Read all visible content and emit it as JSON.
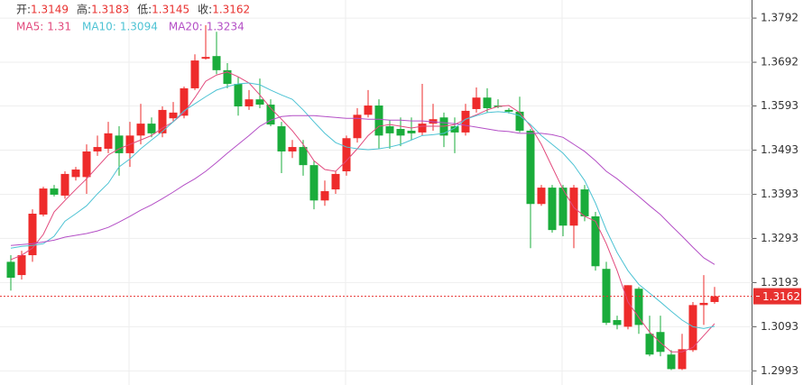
{
  "chart_data": {
    "type": "candlestick",
    "header": [
      {
        "label": "开:",
        "value": 1.3149
      },
      {
        "label": "高:",
        "value": 1.3183
      },
      {
        "label": "低:",
        "value": 1.3145
      },
      {
        "label": "收:",
        "value": 1.3162
      }
    ],
    "header_value_color": "#e8312f",
    "up_color": "#ee2b2b",
    "down_color": "#1aac3b",
    "ohlc": {
      "open": [
        1.324,
        1.321,
        1.3255,
        1.3347,
        1.3406,
        1.339,
        1.3432,
        1.3432,
        1.349,
        1.3496,
        1.3526,
        1.3486,
        1.3526,
        1.3553,
        1.3531,
        1.3565,
        1.3571,
        1.3633,
        1.37,
        1.3706,
        1.3674,
        1.3643,
        1.3592,
        1.3608,
        1.3596,
        1.3547,
        1.349,
        1.35,
        1.3459,
        1.3379,
        1.3404,
        1.3445,
        1.352,
        1.3573,
        1.3594,
        1.3547,
        1.3541,
        1.3537,
        1.3533,
        1.3553,
        1.3567,
        1.3547,
        1.3533,
        1.3586,
        1.3612,
        1.3594,
        1.3584,
        1.358,
        1.3537,
        1.3371,
        1.3408,
        1.3408,
        1.3322,
        1.3404,
        1.3343,
        1.3224,
        1.3108,
        1.3093,
        1.3179,
        1.3077,
        1.3081,
        1.303,
        1.2997,
        1.304,
        1.3142,
        1.3149
      ],
      "high": [
        1.3255,
        1.3265,
        1.3359,
        1.341,
        1.3414,
        1.3445,
        1.3455,
        1.3506,
        1.3526,
        1.3557,
        1.3547,
        1.3557,
        1.3598,
        1.3567,
        1.3592,
        1.3602,
        1.3637,
        1.371,
        1.3776,
        1.3761,
        1.369,
        1.3659,
        1.3629,
        1.3655,
        1.3608,
        1.3557,
        1.3516,
        1.3516,
        1.3469,
        1.3424,
        1.3445,
        1.3526,
        1.3588,
        1.3629,
        1.3608,
        1.3561,
        1.3567,
        1.3567,
        1.3643,
        1.3598,
        1.3578,
        1.3567,
        1.3598,
        1.3635,
        1.3633,
        1.3608,
        1.3588,
        1.3614,
        1.3541,
        1.3414,
        1.3414,
        1.3414,
        1.3414,
        1.3414,
        1.3353,
        1.324,
        1.3118,
        1.3187,
        1.3183,
        1.3118,
        1.3118,
        1.304,
        1.3077,
        1.3149,
        1.321,
        1.3183
      ],
      "low": [
        1.3175,
        1.32,
        1.324,
        1.3343,
        1.3388,
        1.3383,
        1.3424,
        1.3394,
        1.348,
        1.3486,
        1.3435,
        1.3455,
        1.3506,
        1.3522,
        1.3522,
        1.3557,
        1.3565,
        1.3629,
        1.3698,
        1.3665,
        1.3633,
        1.3571,
        1.3584,
        1.3588,
        1.3547,
        1.3441,
        1.3475,
        1.3435,
        1.3359,
        1.3367,
        1.3394,
        1.3435,
        1.351,
        1.3567,
        1.3496,
        1.3496,
        1.3502,
        1.3516,
        1.3526,
        1.3537,
        1.35,
        1.3486,
        1.3526,
        1.3578,
        1.3578,
        1.3588,
        1.3576,
        1.3533,
        1.3271,
        1.3367,
        1.3306,
        1.3298,
        1.3271,
        1.3332,
        1.322,
        1.3097,
        1.3087,
        1.3087,
        1.3077,
        1.3026,
        1.3026,
        1.2995,
        1.2995,
        1.3036,
        1.3097,
        1.3145
      ],
      "close": [
        1.3204,
        1.3255,
        1.3349,
        1.3406,
        1.3392,
        1.3439,
        1.3449,
        1.349,
        1.35,
        1.3531,
        1.3486,
        1.3526,
        1.3553,
        1.3531,
        1.3584,
        1.3578,
        1.3633,
        1.3696,
        1.3704,
        1.3674,
        1.3643,
        1.3592,
        1.3608,
        1.3596,
        1.3551,
        1.349,
        1.35,
        1.3459,
        1.3379,
        1.34,
        1.3439,
        1.352,
        1.3573,
        1.3594,
        1.3526,
        1.3531,
        1.3526,
        1.3531,
        1.3553,
        1.3563,
        1.3526,
        1.3533,
        1.3582,
        1.3612,
        1.3588,
        1.3592,
        1.358,
        1.3537,
        1.3371,
        1.3408,
        1.3312,
        1.3322,
        1.3408,
        1.3343,
        1.323,
        1.3102,
        1.3097,
        1.3187,
        1.3097,
        1.303,
        1.3036,
        1.2997,
        1.3042,
        1.3142,
        1.3147,
        1.3162
      ]
    },
    "series": [
      {
        "name": "MA5:",
        "legend_value": 1.31,
        "color": "#e24a7d",
        "values": [
          1.3245,
          1.3255,
          1.3271,
          1.3302,
          1.3353,
          1.3379,
          1.3404,
          1.3428,
          1.3455,
          1.3482,
          1.3496,
          1.3506,
          1.3516,
          1.3526,
          1.3543,
          1.3557,
          1.3578,
          1.3612,
          1.3649,
          1.3663,
          1.367,
          1.3659,
          1.3645,
          1.3618,
          1.3588,
          1.3563,
          1.3537,
          1.3506,
          1.3469,
          1.3449,
          1.3445,
          1.3469,
          1.3496,
          1.3526,
          1.3547,
          1.3551,
          1.3547,
          1.3543,
          1.3547,
          1.3547,
          1.3547,
          1.3551,
          1.3563,
          1.3573,
          1.3584,
          1.3592,
          1.3594,
          1.3578,
          1.3547,
          1.3506,
          1.3455,
          1.3404,
          1.3363,
          1.3343,
          1.3332,
          1.3281,
          1.322,
          1.3149,
          1.3114,
          1.3081,
          1.3057,
          1.3036,
          1.3036,
          1.3046,
          1.3073,
          1.31
        ]
      },
      {
        "name": "MA10:",
        "legend_value": 1.3094,
        "color": "#4ec3d4",
        "values": [
          1.3271,
          1.3275,
          1.3277,
          1.3281,
          1.3298,
          1.3332,
          1.3349,
          1.3367,
          1.3394,
          1.3418,
          1.3455,
          1.3473,
          1.3496,
          1.3516,
          1.3535,
          1.3557,
          1.3582,
          1.3598,
          1.3614,
          1.3629,
          1.3637,
          1.3643,
          1.3645,
          1.3641,
          1.3629,
          1.3618,
          1.3608,
          1.3584,
          1.3557,
          1.3531,
          1.351,
          1.35,
          1.3496,
          1.3494,
          1.3496,
          1.35,
          1.3506,
          1.3516,
          1.3526,
          1.3528,
          1.3531,
          1.3543,
          1.3563,
          1.3571,
          1.3578,
          1.358,
          1.3578,
          1.3571,
          1.3551,
          1.3526,
          1.3506,
          1.3486,
          1.3459,
          1.3424,
          1.3373,
          1.3312,
          1.3261,
          1.322,
          1.3189,
          1.3169,
          1.3149,
          1.3128,
          1.3108,
          1.3093,
          1.3089,
          1.3094
        ]
      },
      {
        "name": "MA20:",
        "legend_value": 1.3234,
        "color": "#b44fc6",
        "values": [
          1.3277,
          1.3279,
          1.3281,
          1.3285,
          1.3289,
          1.3296,
          1.33,
          1.3304,
          1.331,
          1.3318,
          1.333,
          1.3343,
          1.3357,
          1.3369,
          1.3383,
          1.3398,
          1.3414,
          1.3428,
          1.3445,
          1.3465,
          1.3486,
          1.3506,
          1.3526,
          1.3547,
          1.3561,
          1.3569,
          1.3571,
          1.3571,
          1.3571,
          1.3569,
          1.3567,
          1.3565,
          1.3565,
          1.3563,
          1.3563,
          1.3561,
          1.3561,
          1.3559,
          1.3559,
          1.3557,
          1.3555,
          1.3553,
          1.3549,
          1.3545,
          1.3541,
          1.3537,
          1.3535,
          1.3531,
          1.3531,
          1.3531,
          1.3528,
          1.3522,
          1.3506,
          1.349,
          1.3469,
          1.3445,
          1.3428,
          1.3408,
          1.3388,
          1.3367,
          1.3347,
          1.3322,
          1.3298,
          1.3273,
          1.3249,
          1.3234
        ]
      }
    ],
    "last_price": 1.3162,
    "last_price_color": "#e8312f",
    "ylim": [
      1.2961,
      1.3833
    ],
    "yticks": [
      1.2993,
      1.3093,
      1.3193,
      1.3293,
      1.3393,
      1.3493,
      1.3593,
      1.3692,
      1.3792
    ],
    "grid": true
  }
}
